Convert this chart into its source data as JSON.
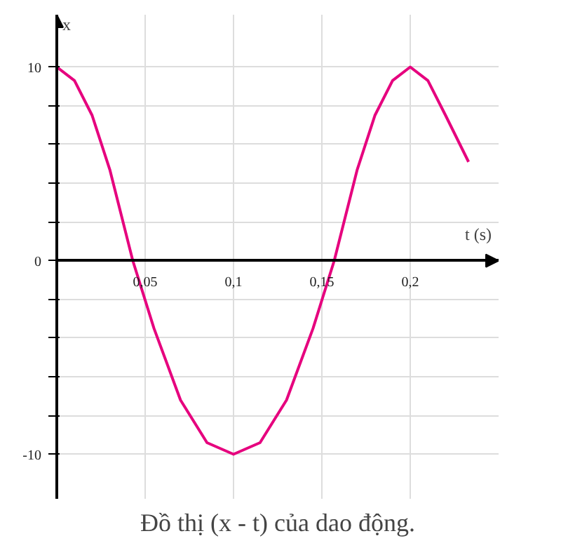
{
  "chart_data": {
    "type": "line",
    "xlabel": "t (s)",
    "ylabel": "x",
    "annotations": [
      "Đồ thị (x - t) của dao động."
    ],
    "x": [
      0,
      0.01,
      0.02,
      0.03,
      0.043,
      0.055,
      0.07,
      0.085,
      0.1,
      0.115,
      0.13,
      0.145,
      0.157,
      0.17,
      0.18,
      0.19,
      0.2,
      0.21,
      0.22,
      0.233
    ],
    "series": [
      {
        "color": "#e6007e",
        "values": [
          10,
          9.3,
          7.5,
          4.7,
          0,
          -3.5,
          -7.2,
          -9.4,
          -10,
          -9.4,
          -7.2,
          -3.5,
          0,
          4.7,
          7.5,
          9.3,
          10,
          9.3,
          7.5,
          5.1
        ]
      }
    ],
    "xlim": [
      0,
      0.25
    ],
    "ylim": [
      -12.3,
      12.7
    ],
    "xticks": [
      {
        "value": 0.05,
        "label": "0,05"
      },
      {
        "value": 0.1,
        "label": "0,1"
      },
      {
        "value": 0.15,
        "label": "0,15"
      },
      {
        "value": 0.2,
        "label": "0,2"
      }
    ],
    "yticks": [
      -10,
      {
        "value": -8,
        "label": null
      },
      {
        "value": -6,
        "label": null
      },
      {
        "value": -4,
        "label": null
      },
      {
        "value": -2,
        "label": null
      },
      0,
      {
        "value": 2,
        "label": null
      },
      {
        "value": 4,
        "label": null
      },
      {
        "value": 6,
        "label": null
      },
      {
        "value": 8,
        "label": null
      },
      10
    ],
    "grid": true,
    "marker": "none",
    "line_style": "solid"
  }
}
